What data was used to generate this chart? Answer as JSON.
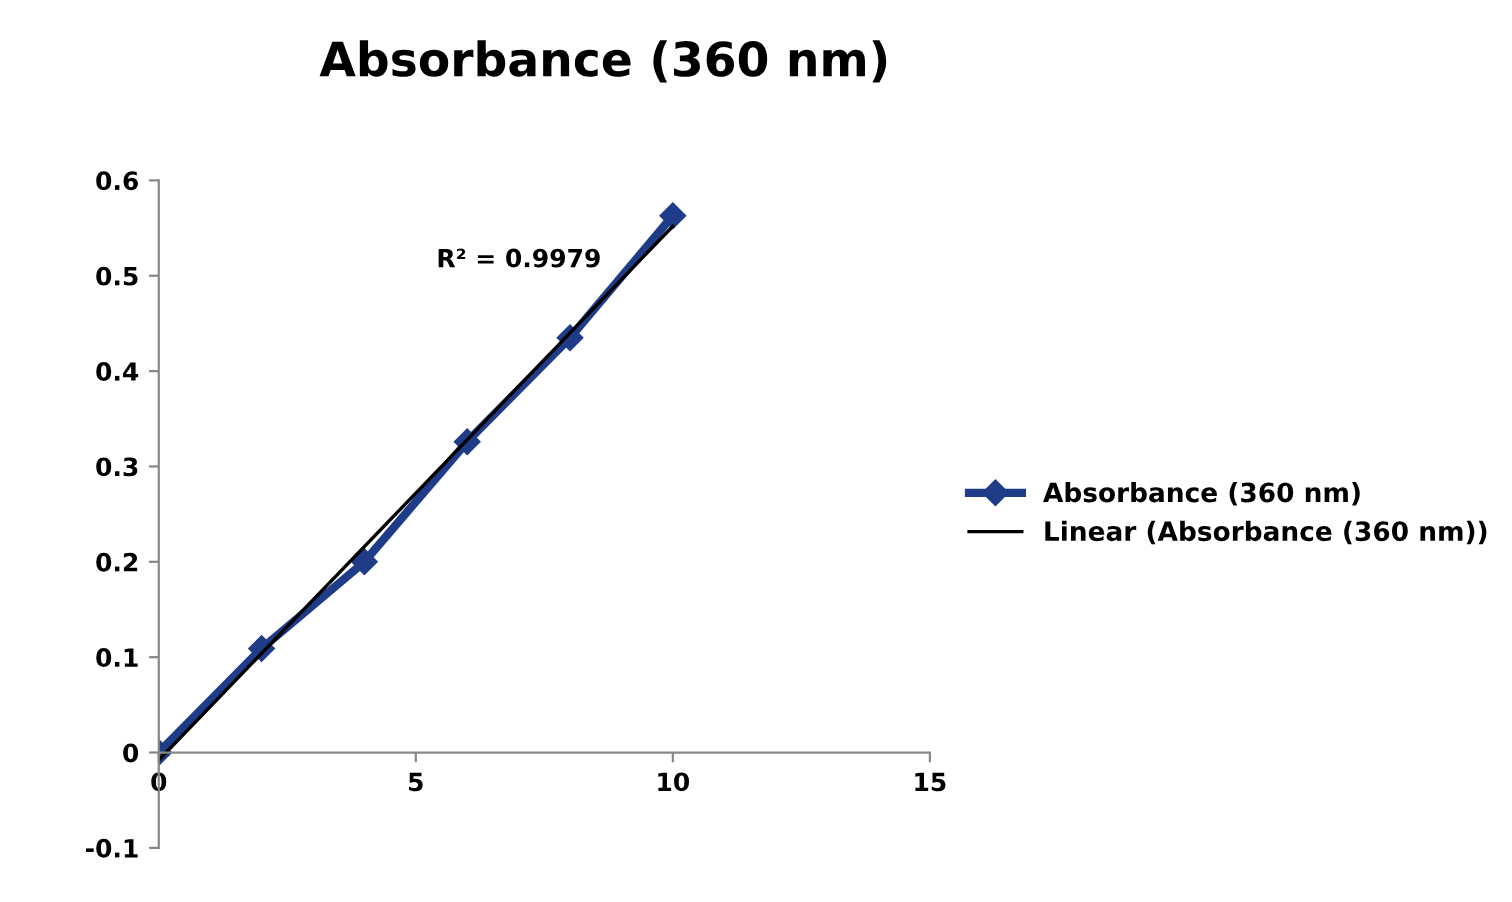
{
  "chart_data": {
    "type": "line",
    "title": "Absorbance (360 nm)",
    "x": [
      0,
      2,
      4,
      6,
      8,
      10
    ],
    "series": [
      {
        "name": "Absorbance (360 nm)",
        "color": "#1f3c88",
        "values": [
          0,
          0.109,
          0.2,
          0.326,
          0.435,
          0.563
        ],
        "marker": "diamond"
      },
      {
        "name": "Linear (Absorbance (360 nm))",
        "color": "#000000",
        "type": "line",
        "x": [
          0,
          10
        ],
        "values": [
          -0.008,
          0.552
        ]
      }
    ],
    "annotations": [
      "R² = 0.9979"
    ],
    "xlim": [
      0,
      15
    ],
    "xticks": [
      0,
      5,
      10,
      15
    ],
    "ylim": [
      -0.1,
      0.6
    ],
    "yticks": [
      -0.1,
      0,
      0.1,
      0.2,
      0.3,
      0.4,
      0.5,
      0.6
    ],
    "grid": false,
    "legend": "right"
  }
}
